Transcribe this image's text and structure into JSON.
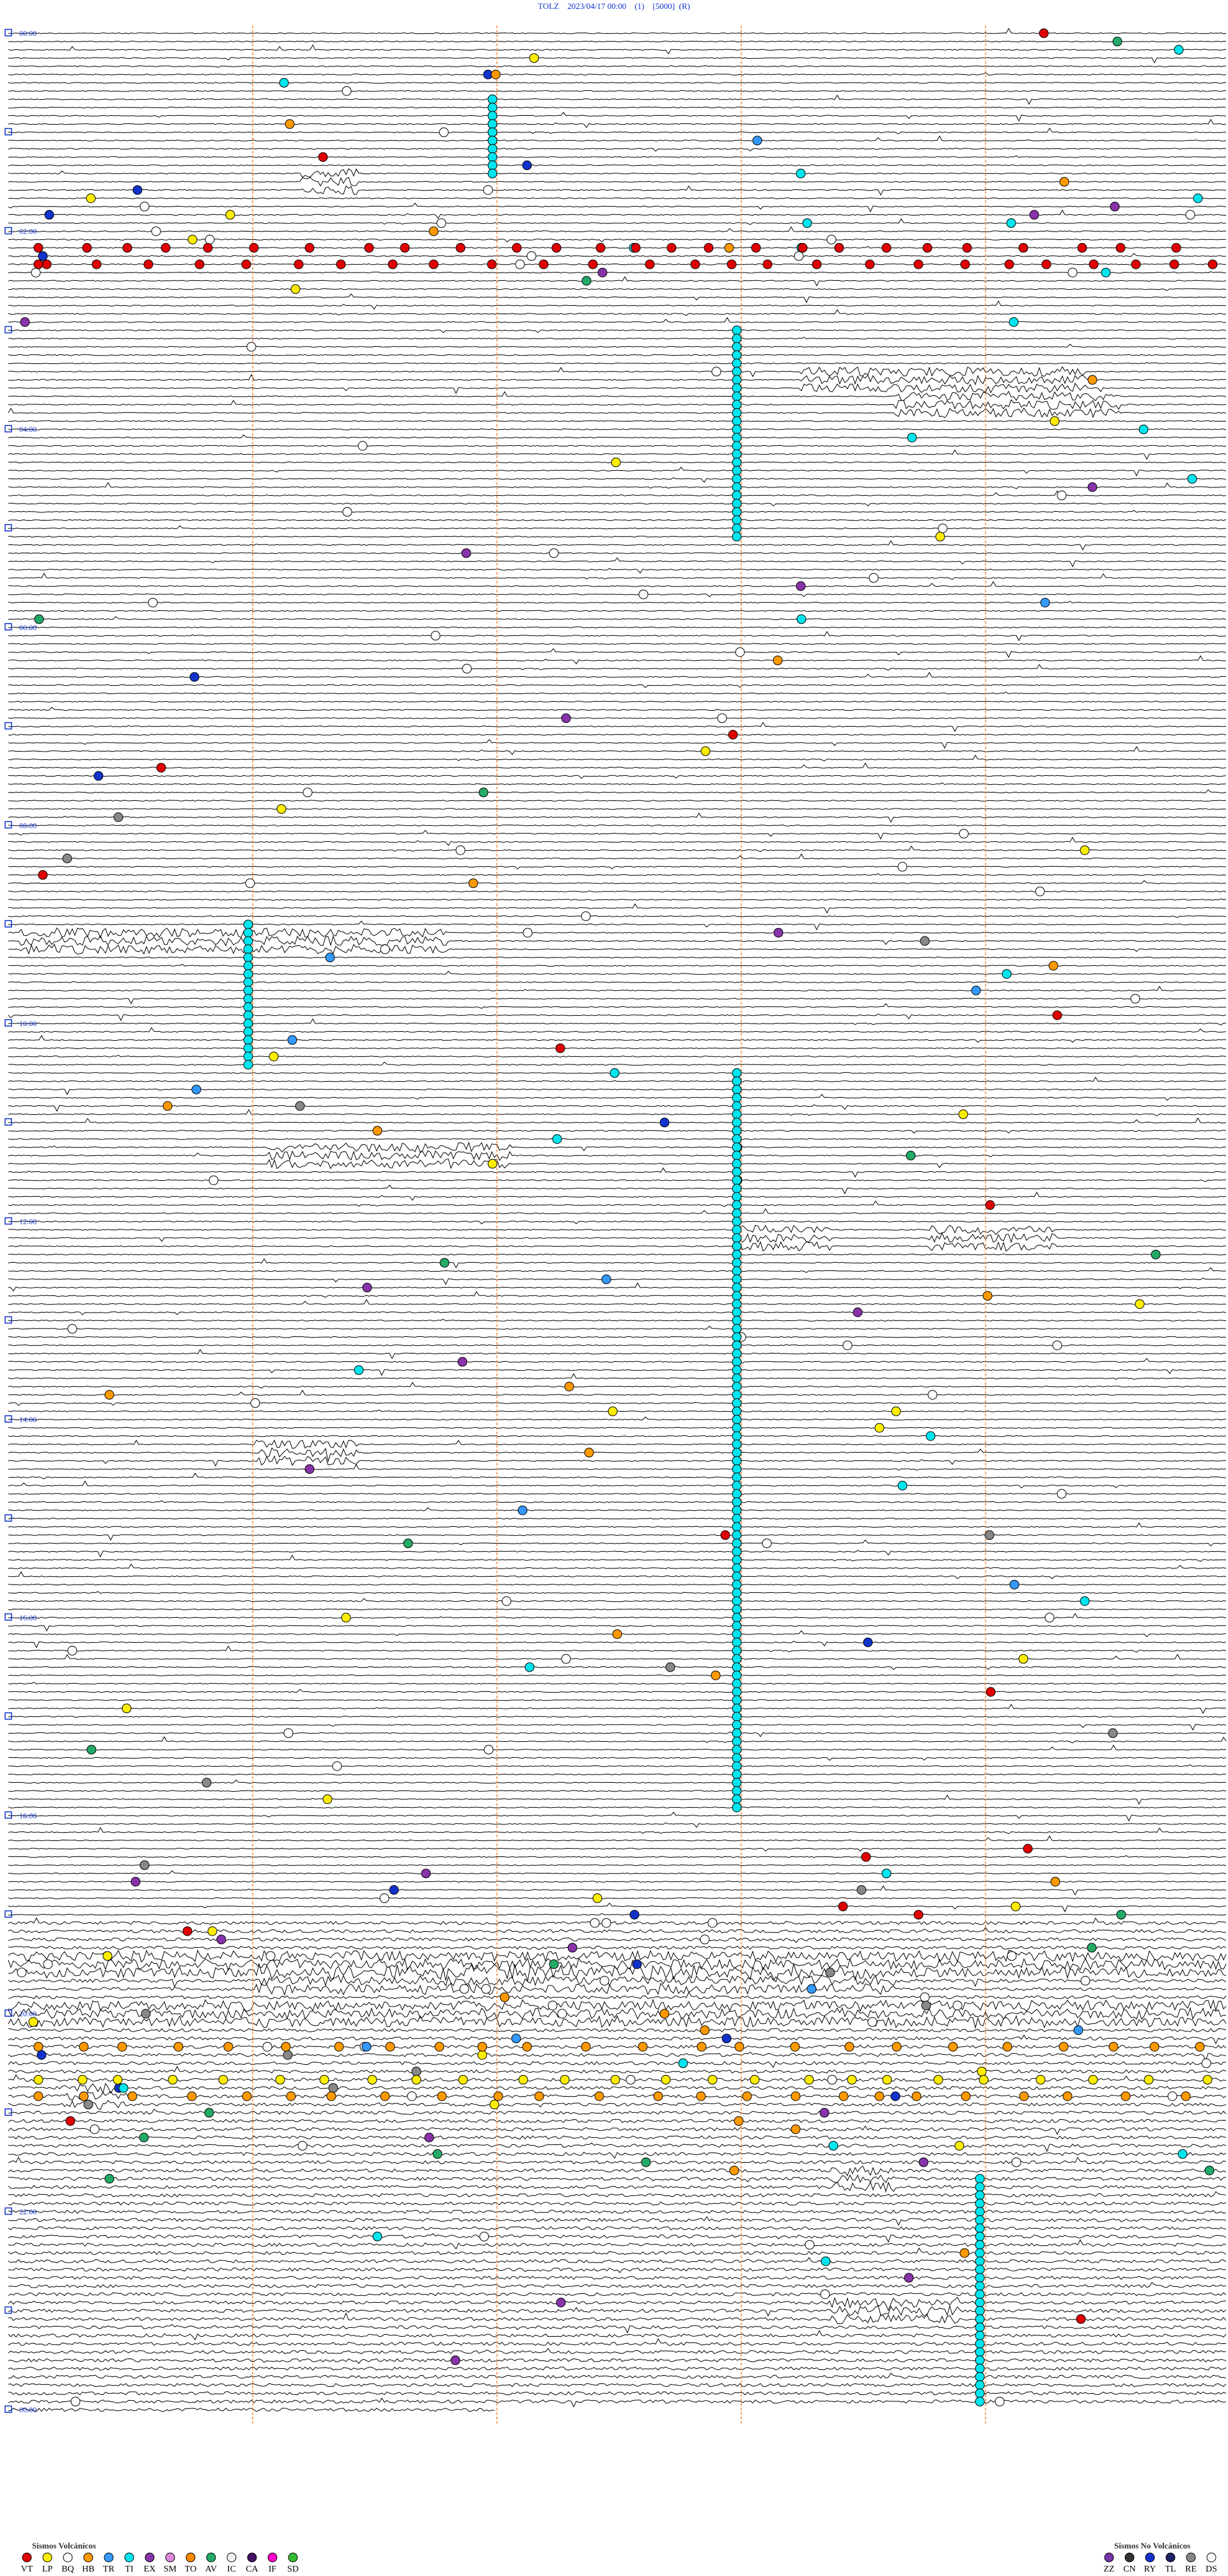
{
  "header": {
    "title": "TOLZ    2023/04/17 00:00    (1)    [5000]  (R)"
  },
  "hour_labels": [
    "00:00",
    "02:00",
    "04:00",
    "06:00",
    "08:00",
    "10:00",
    "12:00",
    "14:00",
    "16:00",
    "18:00",
    "20:00",
    "22:00",
    "00:00"
  ],
  "legend_volcanic": {
    "title": "Sismos Volcánicos",
    "items": [
      {
        "code": "VT",
        "color": "#e00000"
      },
      {
        "code": "LP",
        "color": "#ffee00"
      },
      {
        "code": "BQ",
        "color": "#ffffff"
      },
      {
        "code": "HB",
        "color": "#ff9900"
      },
      {
        "code": "TR",
        "color": "#3399ff"
      },
      {
        "code": "TI",
        "color": "#00e5ee"
      },
      {
        "code": "EX",
        "color": "#8833aa"
      },
      {
        "code": "SM",
        "color": "#dd88dd"
      },
      {
        "code": "TO",
        "color": "#ff8800"
      },
      {
        "code": "AV",
        "color": "#22aa66"
      },
      {
        "code": "IC",
        "color": "#f0f0f0"
      },
      {
        "code": "CA",
        "color": "#441166"
      },
      {
        "code": "IF",
        "color": "#ff00cc"
      },
      {
        "code": "SD",
        "color": "#33bb33"
      }
    ]
  },
  "legend_nonvolcanic": {
    "title": "Sismos No Volcánicos",
    "items": [
      {
        "code": "ZZ",
        "color": "#7733aa"
      },
      {
        "code": "CN",
        "color": "#333333"
      },
      {
        "code": "RY",
        "color": "#1133cc"
      },
      {
        "code": "TL",
        "color": "#222266"
      },
      {
        "code": "RE",
        "color": "#888888"
      },
      {
        "code": "DS",
        "color": "#ffffff"
      }
    ]
  }
}
